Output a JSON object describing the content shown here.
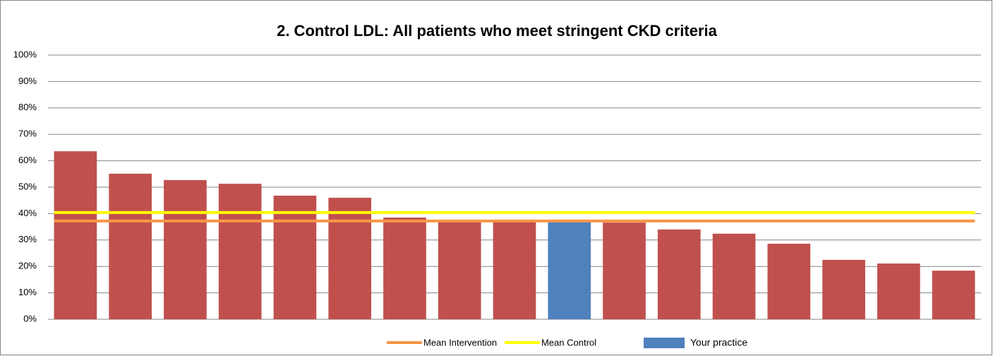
{
  "chart_data": {
    "type": "bar",
    "title": "2. Control LDL: All patients who meet stringent CKD criteria",
    "values": [
      63.6,
      55.1,
      52.7,
      51.3,
      46.8,
      46.0,
      38.5,
      37.5,
      37.5,
      37.2,
      36.6,
      34.0,
      32.4,
      28.6,
      22.5,
      21.1,
      18.4
    ],
    "bar_colors": [
      "#c0504d",
      "#c0504d",
      "#c0504d",
      "#c0504d",
      "#c0504d",
      "#c0504d",
      "#c0504d",
      "#c0504d",
      "#c0504d",
      "#4f81bd",
      "#c0504d",
      "#c0504d",
      "#c0504d",
      "#c0504d",
      "#c0504d",
      "#c0504d",
      "#c0504d"
    ],
    "lines": [
      {
        "name": "Mean Intervention",
        "color": "#f79646",
        "value": 37.2
      },
      {
        "name": "Mean Control",
        "color": "#ffff00",
        "value": 40.4
      }
    ],
    "legend_bar": {
      "name": "Your practice",
      "color": "#4f81bd"
    },
    "ylim": [
      0,
      100
    ],
    "yticks": [
      {
        "value": 0,
        "label": "0%"
      },
      {
        "value": 10,
        "label": "10%"
      },
      {
        "value": 20,
        "label": "20%"
      },
      {
        "value": 30,
        "label": "30%"
      },
      {
        "value": 40,
        "label": "40%"
      },
      {
        "value": 50,
        "label": "50%"
      },
      {
        "value": 60,
        "label": "60%"
      },
      {
        "value": 70,
        "label": "70%"
      },
      {
        "value": 80,
        "label": "80%"
      },
      {
        "value": 90,
        "label": "90%"
      },
      {
        "value": 100,
        "label": "100%"
      }
    ],
    "grid": true
  }
}
